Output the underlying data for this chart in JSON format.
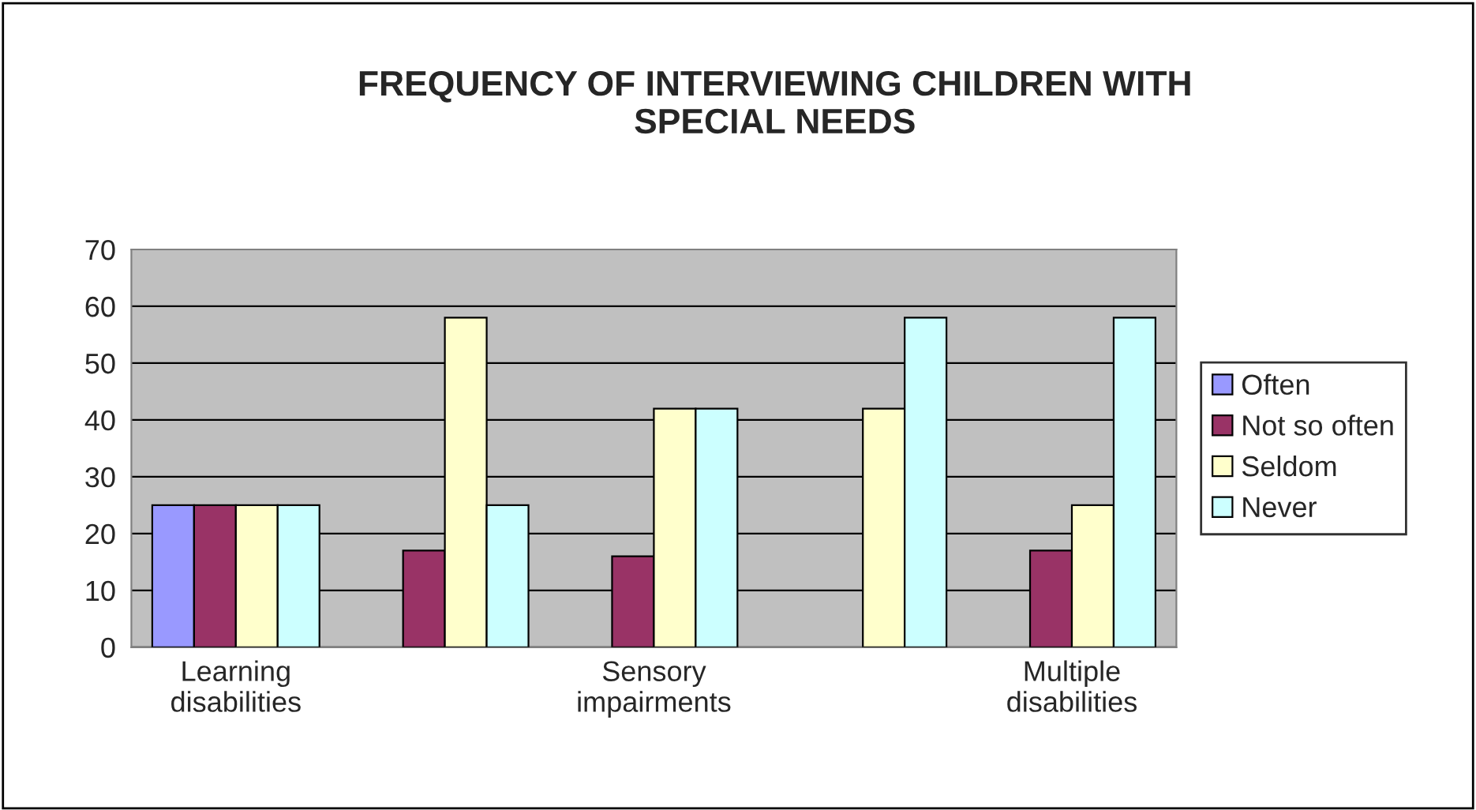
{
  "chart_data": {
    "type": "bar",
    "title": "FREQUENCY OF INTERVIEWING CHILDREN WITH\nSPECIAL NEEDS",
    "categories": [
      "Learning\ndisabilities",
      null,
      "Sensory\nimpairments",
      null,
      "Multiple\ndisabilities"
    ],
    "series": [
      {
        "name": "Often",
        "color": "#9999ff",
        "values": [
          25,
          null,
          null,
          null,
          null
        ]
      },
      {
        "name": "Not so often",
        "color": "#993366",
        "values": [
          25,
          17,
          16,
          null,
          17
        ]
      },
      {
        "name": "Seldom",
        "color": "#ffffcc",
        "values": [
          25,
          58,
          42,
          42,
          25
        ]
      },
      {
        "name": "Never",
        "color": "#ccffff",
        "values": [
          25,
          25,
          42,
          58,
          58
        ]
      }
    ],
    "ylim": [
      0,
      70
    ],
    "yticks": [
      0,
      10,
      20,
      30,
      40,
      50,
      60,
      70
    ],
    "grid": "y",
    "legend": "right"
  }
}
